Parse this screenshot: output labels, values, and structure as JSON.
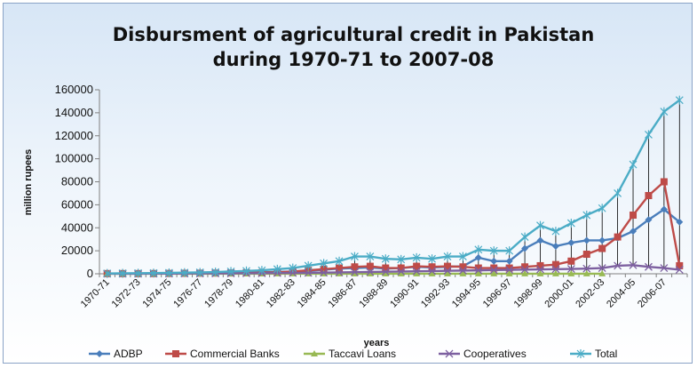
{
  "chart_data": {
    "type": "line",
    "title_lines": [
      "Disbursment of agricultural credit in Pakistan",
      "during 1970-71 to 2007-08"
    ],
    "xlabel": "years",
    "ylabel": "million rupees",
    "ylim": [
      0,
      160000
    ],
    "yticks": [
      0,
      20000,
      40000,
      60000,
      80000,
      100000,
      120000,
      140000,
      160000
    ],
    "ytick_labels": [
      "0",
      "20000",
      "40000",
      "60000",
      "80000",
      "100000",
      "120000",
      "140000",
      "160000"
    ],
    "categories": [
      "1970-71",
      "1971-72",
      "1972-73",
      "1973-74",
      "1974-75",
      "1975-76",
      "1976-77",
      "1977-78",
      "1978-79",
      "1979-80",
      "1980-81",
      "1981-82",
      "1982-83",
      "1983-84",
      "1984-85",
      "1985-86",
      "1986-87",
      "1987-88",
      "1988-89",
      "1989-90",
      "1990-91",
      "1991-92",
      "1992-93",
      "1993-94",
      "1994-95",
      "1995-96",
      "1996-97",
      "1997-98",
      "1998-99",
      "1999-00",
      "2000-01",
      "2001-02",
      "2002-03",
      "2003-04",
      "2004-05",
      "2005-06",
      "2006-07",
      "2007-08"
    ],
    "xtick_labels": [
      "1970-71",
      "1972-73",
      "1974-75",
      "1976-77",
      "1978-79",
      "1980-81",
      "1982-83",
      "1984-85",
      "1986-87",
      "1988-89",
      "1990-91",
      "1992-93",
      "1994-95",
      "1996-97",
      "1998-99",
      "2000-01",
      "2002-03",
      "2004-05",
      "2006-07"
    ],
    "grid": false,
    "drop_lines": true,
    "legend_position": "bottom",
    "series": [
      {
        "name": "ADBP",
        "color": "#4a7ebb",
        "marker": "diamond",
        "values": [
          150,
          200,
          250,
          300,
          400,
          500,
          600,
          700,
          900,
          1100,
          1300,
          1600,
          2000,
          2500,
          3500,
          4500,
          5000,
          5500,
          4500,
          5000,
          6000,
          5500,
          6000,
          6500,
          14000,
          11000,
          11000,
          22000,
          29000,
          24000,
          27000,
          29000,
          29000,
          31000,
          37000,
          47000,
          56000,
          45000
        ]
      },
      {
        "name": "Commercial Banks",
        "color": "#be4b48",
        "marker": "square",
        "values": [
          150,
          150,
          150,
          200,
          300,
          400,
          500,
          600,
          700,
          800,
          1000,
          1200,
          2000,
          3000,
          4000,
          5000,
          6000,
          6500,
          5000,
          5000,
          6500,
          6000,
          6500,
          6000,
          5000,
          5000,
          5000,
          6000,
          7000,
          8000,
          11000,
          17000,
          22000,
          32000,
          51000,
          68000,
          80000,
          7000
        ]
      },
      {
        "name": "Taccavi Loans",
        "color": "#98b954",
        "marker": "triangle",
        "values": [
          50,
          50,
          50,
          50,
          50,
          50,
          50,
          50,
          50,
          50,
          50,
          50,
          50,
          50,
          50,
          50,
          50,
          50,
          50,
          50,
          50,
          50,
          50,
          50,
          50,
          50,
          50,
          50,
          50,
          50,
          50,
          50,
          50,
          null,
          null,
          null,
          null,
          null
        ]
      },
      {
        "name": "Cooperatives",
        "color": "#7d60a0",
        "marker": "x",
        "values": [
          50,
          80,
          100,
          150,
          200,
          250,
          300,
          350,
          400,
          450,
          500,
          600,
          700,
          800,
          1000,
          1200,
          1400,
          1600,
          1800,
          2000,
          2200,
          2400,
          2600,
          2800,
          3000,
          3200,
          3400,
          3600,
          3800,
          4000,
          4200,
          4500,
          5000,
          7000,
          7500,
          6000,
          5000,
          3500
        ]
      },
      {
        "name": "Total",
        "color": "#4bacc6",
        "marker": "star",
        "values": [
          300,
          400,
          500,
          600,
          800,
          1000,
          1200,
          1500,
          2000,
          2500,
          3000,
          4000,
          5000,
          7000,
          9000,
          11000,
          15000,
          15000,
          13000,
          12500,
          14000,
          13000,
          15000,
          15000,
          21000,
          20000,
          20000,
          32000,
          42000,
          37000,
          44000,
          51000,
          57000,
          70000,
          95000,
          121000,
          141000,
          151000
        ]
      }
    ]
  }
}
